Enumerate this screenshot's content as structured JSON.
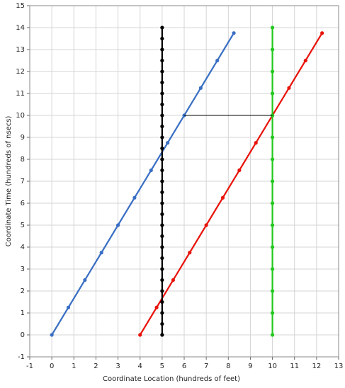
{
  "chart_data": {
    "type": "line",
    "x_label": "Coordinate Location (hundreds of feet)",
    "y_label": "Coordinate Time (hundreds of nsecs)",
    "xlim": [
      -1,
      13
    ],
    "xticks": [
      -1,
      0,
      1,
      2,
      3,
      4,
      5,
      6,
      7,
      8,
      9,
      10,
      11,
      12,
      13
    ],
    "ylim": [
      -1,
      15
    ],
    "yticks": [
      -1,
      0,
      1,
      2,
      3,
      4,
      5,
      6,
      7,
      8,
      9,
      10,
      11,
      12,
      13,
      14,
      15
    ],
    "grid": true,
    "series": [
      {
        "color": "#3a6fc4",
        "markers": true,
        "width": 2.2,
        "x": [
          0,
          0.75,
          1.5,
          2.25,
          3,
          3.75,
          4.5,
          5.25,
          6,
          6.75,
          7.5,
          8.25
        ],
        "values": [
          0,
          1.25,
          2.5,
          3.75,
          5,
          6.25,
          7.5,
          8.75,
          10,
          11.25,
          12.5,
          13.75
        ]
      },
      {
        "color": "#e8140c",
        "markers": true,
        "width": 2.2,
        "x": [
          4,
          4.75,
          5.5,
          6.25,
          7,
          7.75,
          8.5,
          9.25,
          10,
          10.75,
          11.5,
          12.25
        ],
        "values": [
          0,
          1.25,
          2.5,
          3.75,
          5,
          6.25,
          7.5,
          8.75,
          10,
          11.25,
          12.5,
          13.75
        ]
      },
      {
        "color": "#000000",
        "markers": true,
        "width": 2.2,
        "x": [
          5,
          5,
          5,
          5,
          5,
          5,
          5,
          5,
          5,
          5,
          5,
          5,
          5,
          5,
          5,
          5,
          5,
          5,
          5,
          5,
          5,
          5,
          5,
          5,
          5,
          5,
          5,
          5,
          5
        ],
        "values": [
          0,
          0.5,
          1,
          1.5,
          2,
          2.5,
          3,
          3.5,
          4,
          4.5,
          5,
          5.5,
          6,
          6.5,
          7,
          7.5,
          8,
          8.5,
          9,
          9.5,
          10,
          10.5,
          11,
          11.5,
          12,
          12.5,
          13,
          13.5,
          14
        ]
      },
      {
        "color": "#22c81e",
        "markers": true,
        "width": 2.2,
        "x": [
          10,
          10,
          10,
          10,
          10,
          10,
          10,
          10,
          10,
          10,
          10,
          10,
          10,
          10,
          10
        ],
        "values": [
          0,
          1,
          2,
          3,
          4,
          5,
          6,
          7,
          8,
          9,
          10,
          11,
          12,
          13,
          14
        ]
      },
      {
        "color": "#000000",
        "markers": false,
        "width": 1,
        "x": [
          6,
          10
        ],
        "values": [
          10,
          10
        ]
      }
    ]
  }
}
